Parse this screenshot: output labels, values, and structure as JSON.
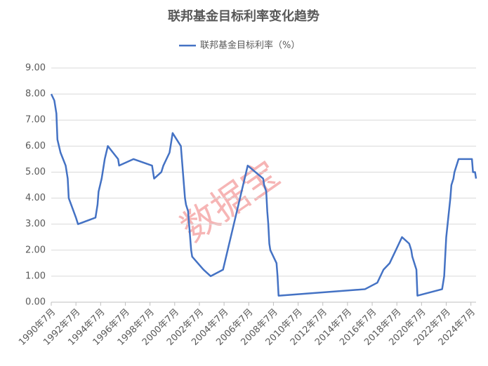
{
  "chart_data": {
    "type": "line",
    "title": "联邦基金目标利率变化趋势",
    "watermark": "数据宝",
    "x": [
      "1990-07",
      "1990-10",
      "1990-12",
      "1991-01",
      "1991-04",
      "1991-09",
      "1991-11",
      "1991-12",
      "1992-07",
      "1992-09",
      "1994-02",
      "1994-03",
      "1994-04",
      "1994-05",
      "1994-08",
      "1994-11",
      "1995-02",
      "1995-07",
      "1995-12",
      "1996-01",
      "1997-03",
      "1998-09",
      "1998-10",
      "1998-11",
      "1999-06",
      "1999-08",
      "1999-11",
      "2000-02",
      "2000-03",
      "2000-05",
      "2001-01",
      "2001-03",
      "2001-04",
      "2001-05",
      "2001-06",
      "2001-08",
      "2001-09",
      "2001-10",
      "2001-11",
      "2001-12",
      "2002-11",
      "2003-06",
      "2004-06",
      "2005-06",
      "2006-06",
      "2007-09",
      "2007-10",
      "2007-12",
      "2008-01",
      "2008-02",
      "2008-03",
      "2008-04",
      "2008-10",
      "2008-11",
      "2008-12",
      "2015-12",
      "2016-12",
      "2017-03",
      "2017-06",
      "2017-12",
      "2018-03",
      "2018-06",
      "2018-09",
      "2018-12",
      "2019-07",
      "2019-09",
      "2019-10",
      "2020-02",
      "2020-03",
      "2022-03",
      "2022-05",
      "2022-06",
      "2022-07",
      "2022-09",
      "2022-11",
      "2022-12",
      "2023-02",
      "2023-03",
      "2023-05",
      "2023-07",
      "2024-08",
      "2024-09",
      "2024-11",
      "2024-12"
    ],
    "series": [
      {
        "name": "联邦基金目标利率（%）",
        "color": "#4472c4",
        "values": [
          8.0,
          7.75,
          7.25,
          6.25,
          5.75,
          5.25,
          4.75,
          4.0,
          3.25,
          3.0,
          3.25,
          3.5,
          3.75,
          4.25,
          4.75,
          5.5,
          6.0,
          5.75,
          5.5,
          5.25,
          5.5,
          5.25,
          5.0,
          4.75,
          5.0,
          5.25,
          5.5,
          5.75,
          6.0,
          6.5,
          6.0,
          5.0,
          4.5,
          4.0,
          3.75,
          3.5,
          3.0,
          2.5,
          2.0,
          1.75,
          1.25,
          1.0,
          1.25,
          3.25,
          5.25,
          4.75,
          4.5,
          4.25,
          3.5,
          3.0,
          2.25,
          2.0,
          1.5,
          1.0,
          0.25,
          0.5,
          0.75,
          1.0,
          1.25,
          1.5,
          1.75,
          2.0,
          2.25,
          2.5,
          2.25,
          2.0,
          1.75,
          1.25,
          0.25,
          0.5,
          1.0,
          1.75,
          2.5,
          3.25,
          4.0,
          4.5,
          4.75,
          5.0,
          5.25,
          5.5,
          5.5,
          5.0,
          5.0,
          4.75
        ]
      }
    ],
    "xlim": [
      "1990-07",
      "2024-12"
    ],
    "xticks": [
      {
        "value": "1990-07",
        "label": "1990年7月"
      },
      {
        "value": "1992-07",
        "label": "1992年7月"
      },
      {
        "value": "1994-07",
        "label": "1994年7月"
      },
      {
        "value": "1996-07",
        "label": "1996年7月"
      },
      {
        "value": "1998-07",
        "label": "1998年7月"
      },
      {
        "value": "2000-07",
        "label": "2000年7月"
      },
      {
        "value": "2002-07",
        "label": "2002年7月"
      },
      {
        "value": "2004-07",
        "label": "2004年7月"
      },
      {
        "value": "2006-07",
        "label": "2006年7月"
      },
      {
        "value": "2008-07",
        "label": "2008年7月"
      },
      {
        "value": "2010-07",
        "label": "2010年7月"
      },
      {
        "value": "2012-07",
        "label": "2012年7月"
      },
      {
        "value": "2014-07",
        "label": "2014年7月"
      },
      {
        "value": "2016-07",
        "label": "2016年7月"
      },
      {
        "value": "2018-07",
        "label": "2018年7月"
      },
      {
        "value": "2020-07",
        "label": "2020年7月"
      },
      {
        "value": "2022-07",
        "label": "2022年7月"
      },
      {
        "value": "2024-07",
        "label": "2024年7月"
      }
    ],
    "ylim": [
      0,
      9
    ],
    "yticks": [
      {
        "value": 0,
        "label": "0.00"
      },
      {
        "value": 1,
        "label": "1.00"
      },
      {
        "value": 2,
        "label": "2.00"
      },
      {
        "value": 3,
        "label": "3.00"
      },
      {
        "value": 4,
        "label": "4.00"
      },
      {
        "value": 5,
        "label": "5.00"
      },
      {
        "value": 6,
        "label": "6.00"
      },
      {
        "value": 7,
        "label": "7.00"
      },
      {
        "value": 8,
        "label": "8.00"
      },
      {
        "value": 9,
        "label": "9.00"
      }
    ],
    "grid": true,
    "legend": "top"
  }
}
